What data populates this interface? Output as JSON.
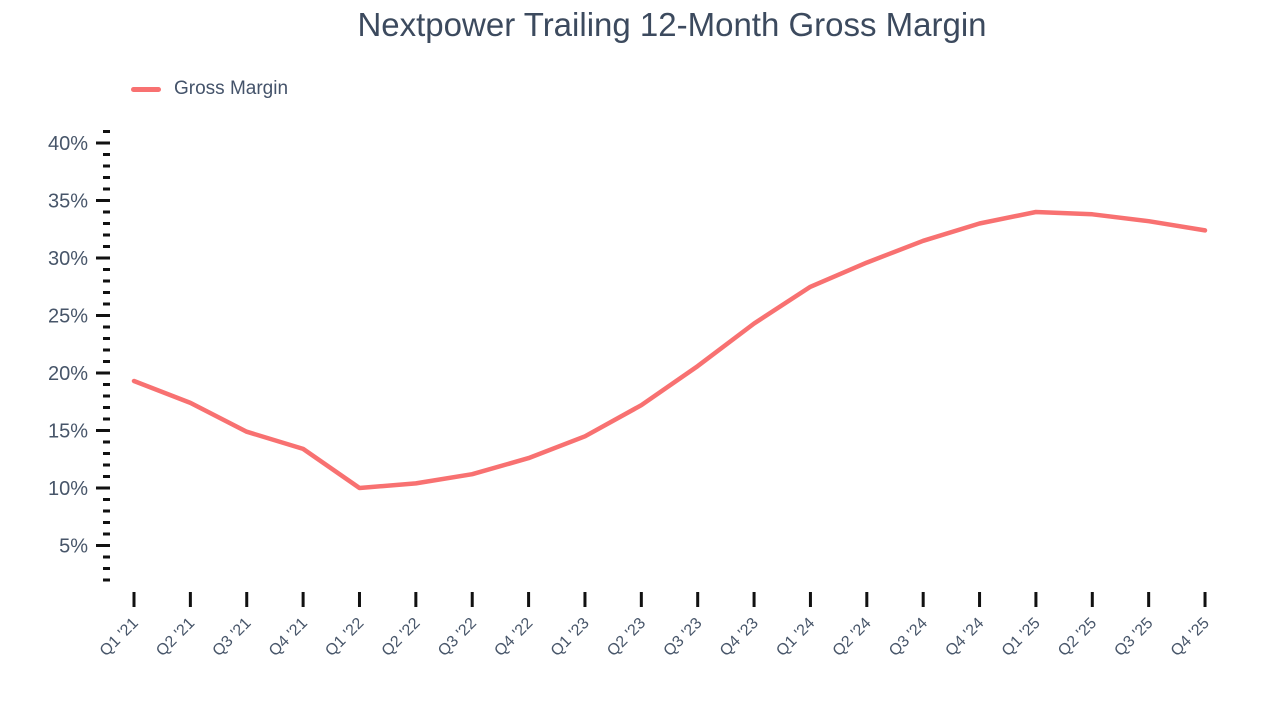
{
  "chart": {
    "title": "Nextpower Trailing 12-Month Gross Margin",
    "legend_label": "Gross Margin"
  },
  "chart_data": {
    "type": "line",
    "title": "Nextpower Trailing 12-Month Gross Margin",
    "categories": [
      "Q1 '21",
      "Q2 '21",
      "Q3 '21",
      "Q4 '21",
      "Q1 '22",
      "Q2 '22",
      "Q3 '22",
      "Q4 '22",
      "Q1 '23",
      "Q2 '23",
      "Q3 '23",
      "Q4 '23",
      "Q1 '24",
      "Q2 '24",
      "Q3 '24",
      "Q4 '24",
      "Q1 '25",
      "Q2 '25",
      "Q3 '25",
      "Q4 '25"
    ],
    "series": [
      {
        "name": "Gross Margin",
        "color": "#f87171",
        "values": [
          19.3,
          17.4,
          14.9,
          13.4,
          10.0,
          10.4,
          11.2,
          12.6,
          14.5,
          17.2,
          20.6,
          24.3,
          27.5,
          29.6,
          31.5,
          33.0,
          34.0,
          33.8,
          33.2,
          32.4
        ]
      }
    ],
    "xlabel": "",
    "ylabel": "",
    "y_tick_format": "percent",
    "y_major_ticks": [
      5,
      10,
      15,
      20,
      25,
      30,
      35,
      40
    ],
    "y_minor_tick_step": 1,
    "y_minor_tick_range": [
      2,
      41
    ],
    "ylim": [
      0,
      42
    ],
    "grid": false,
    "legend_position": "top-left",
    "colors": {
      "line": "#f87171",
      "axis_label_text": "#475569",
      "title_text": "#3c4a5e",
      "tick_marks": "#111111",
      "background": "#ffffff"
    }
  }
}
